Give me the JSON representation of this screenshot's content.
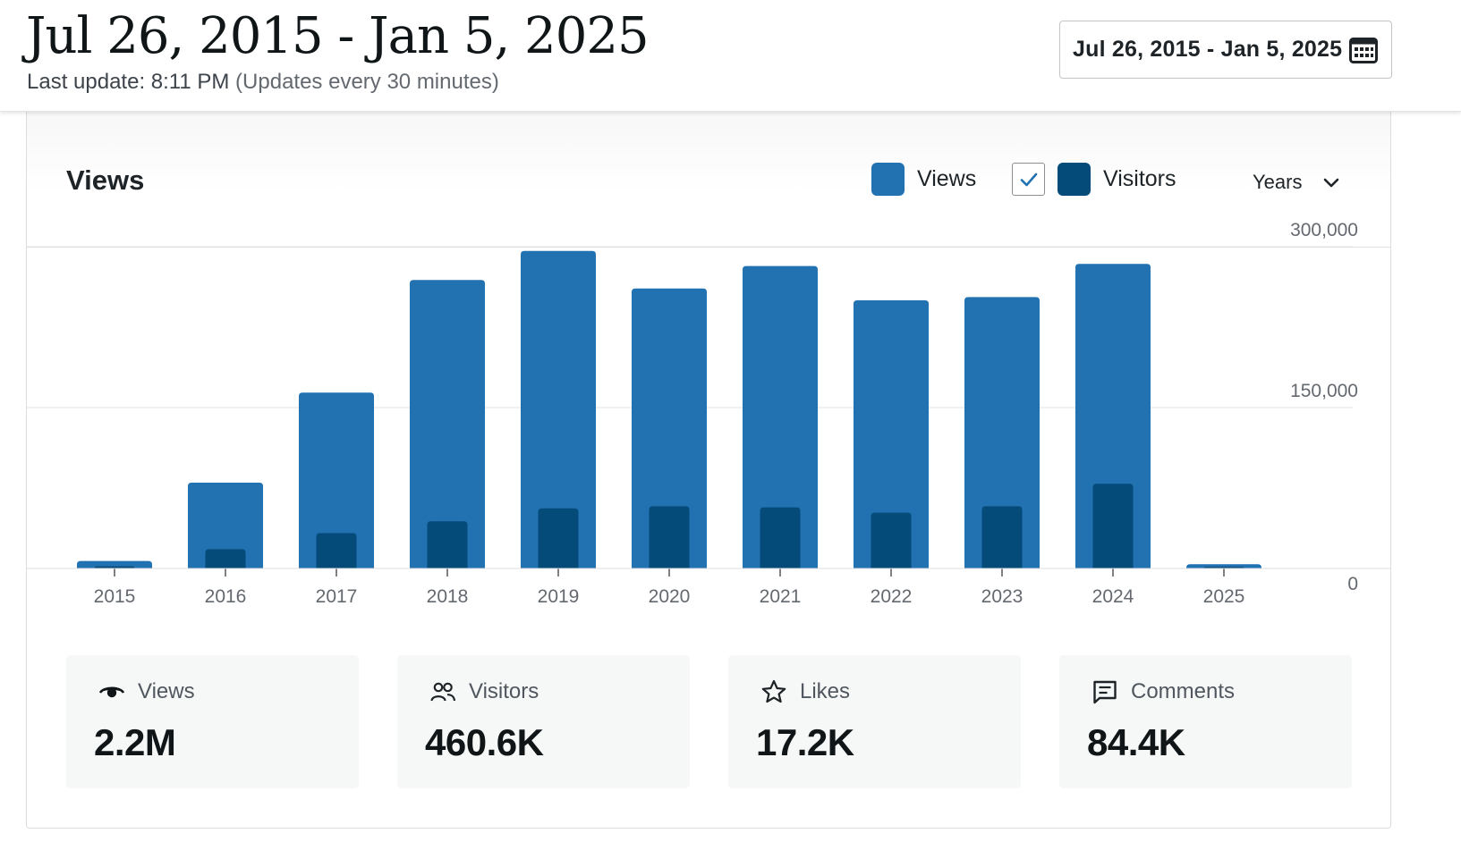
{
  "header": {
    "title": "Jul 26, 2015 - Jan 5, 2025",
    "last_update": "Last update: 8:11 PM",
    "update_frequency": "(Updates every 30 minutes)",
    "date_range_label": "Jul 26, 2015 - Jan 5, 2025"
  },
  "chart_card": {
    "title": "Views",
    "legend": {
      "views_label": "Views",
      "visitors_label": "Visitors",
      "visitors_checked": true
    },
    "period": "Years"
  },
  "colors": {
    "views": "#2271b1",
    "visitors": "#044b7a",
    "accent": "#2271b1"
  },
  "chart_data": {
    "type": "bar",
    "categories": [
      "2015",
      "2016",
      "2017",
      "2018",
      "2019",
      "2020",
      "2021",
      "2022",
      "2023",
      "2024",
      "2025"
    ],
    "series": [
      {
        "name": "Views",
        "values": [
          7000,
          80000,
          164000,
          269000,
          296000,
          261000,
          282000,
          250000,
          253000,
          284000,
          4000
        ]
      },
      {
        "name": "Visitors",
        "values": [
          2000,
          18000,
          33000,
          44000,
          56000,
          58000,
          57000,
          52000,
          58000,
          79000,
          1500
        ]
      }
    ],
    "y_ticks": [
      0,
      150000,
      300000
    ],
    "y_tick_labels": [
      "0",
      "150,000",
      "300,000"
    ],
    "ylim": [
      0,
      300000
    ],
    "grid": true,
    "legend_position": "top-right"
  },
  "stats": [
    {
      "label": "Views",
      "value": "2.2M",
      "icon": "eye-icon",
      "active": true
    },
    {
      "label": "Visitors",
      "value": "460.6K",
      "icon": "people-icon",
      "active": false
    },
    {
      "label": "Likes",
      "value": "17.2K",
      "icon": "star-icon",
      "active": false
    },
    {
      "label": "Comments",
      "value": "84.4K",
      "icon": "comment-icon",
      "active": false
    }
  ]
}
